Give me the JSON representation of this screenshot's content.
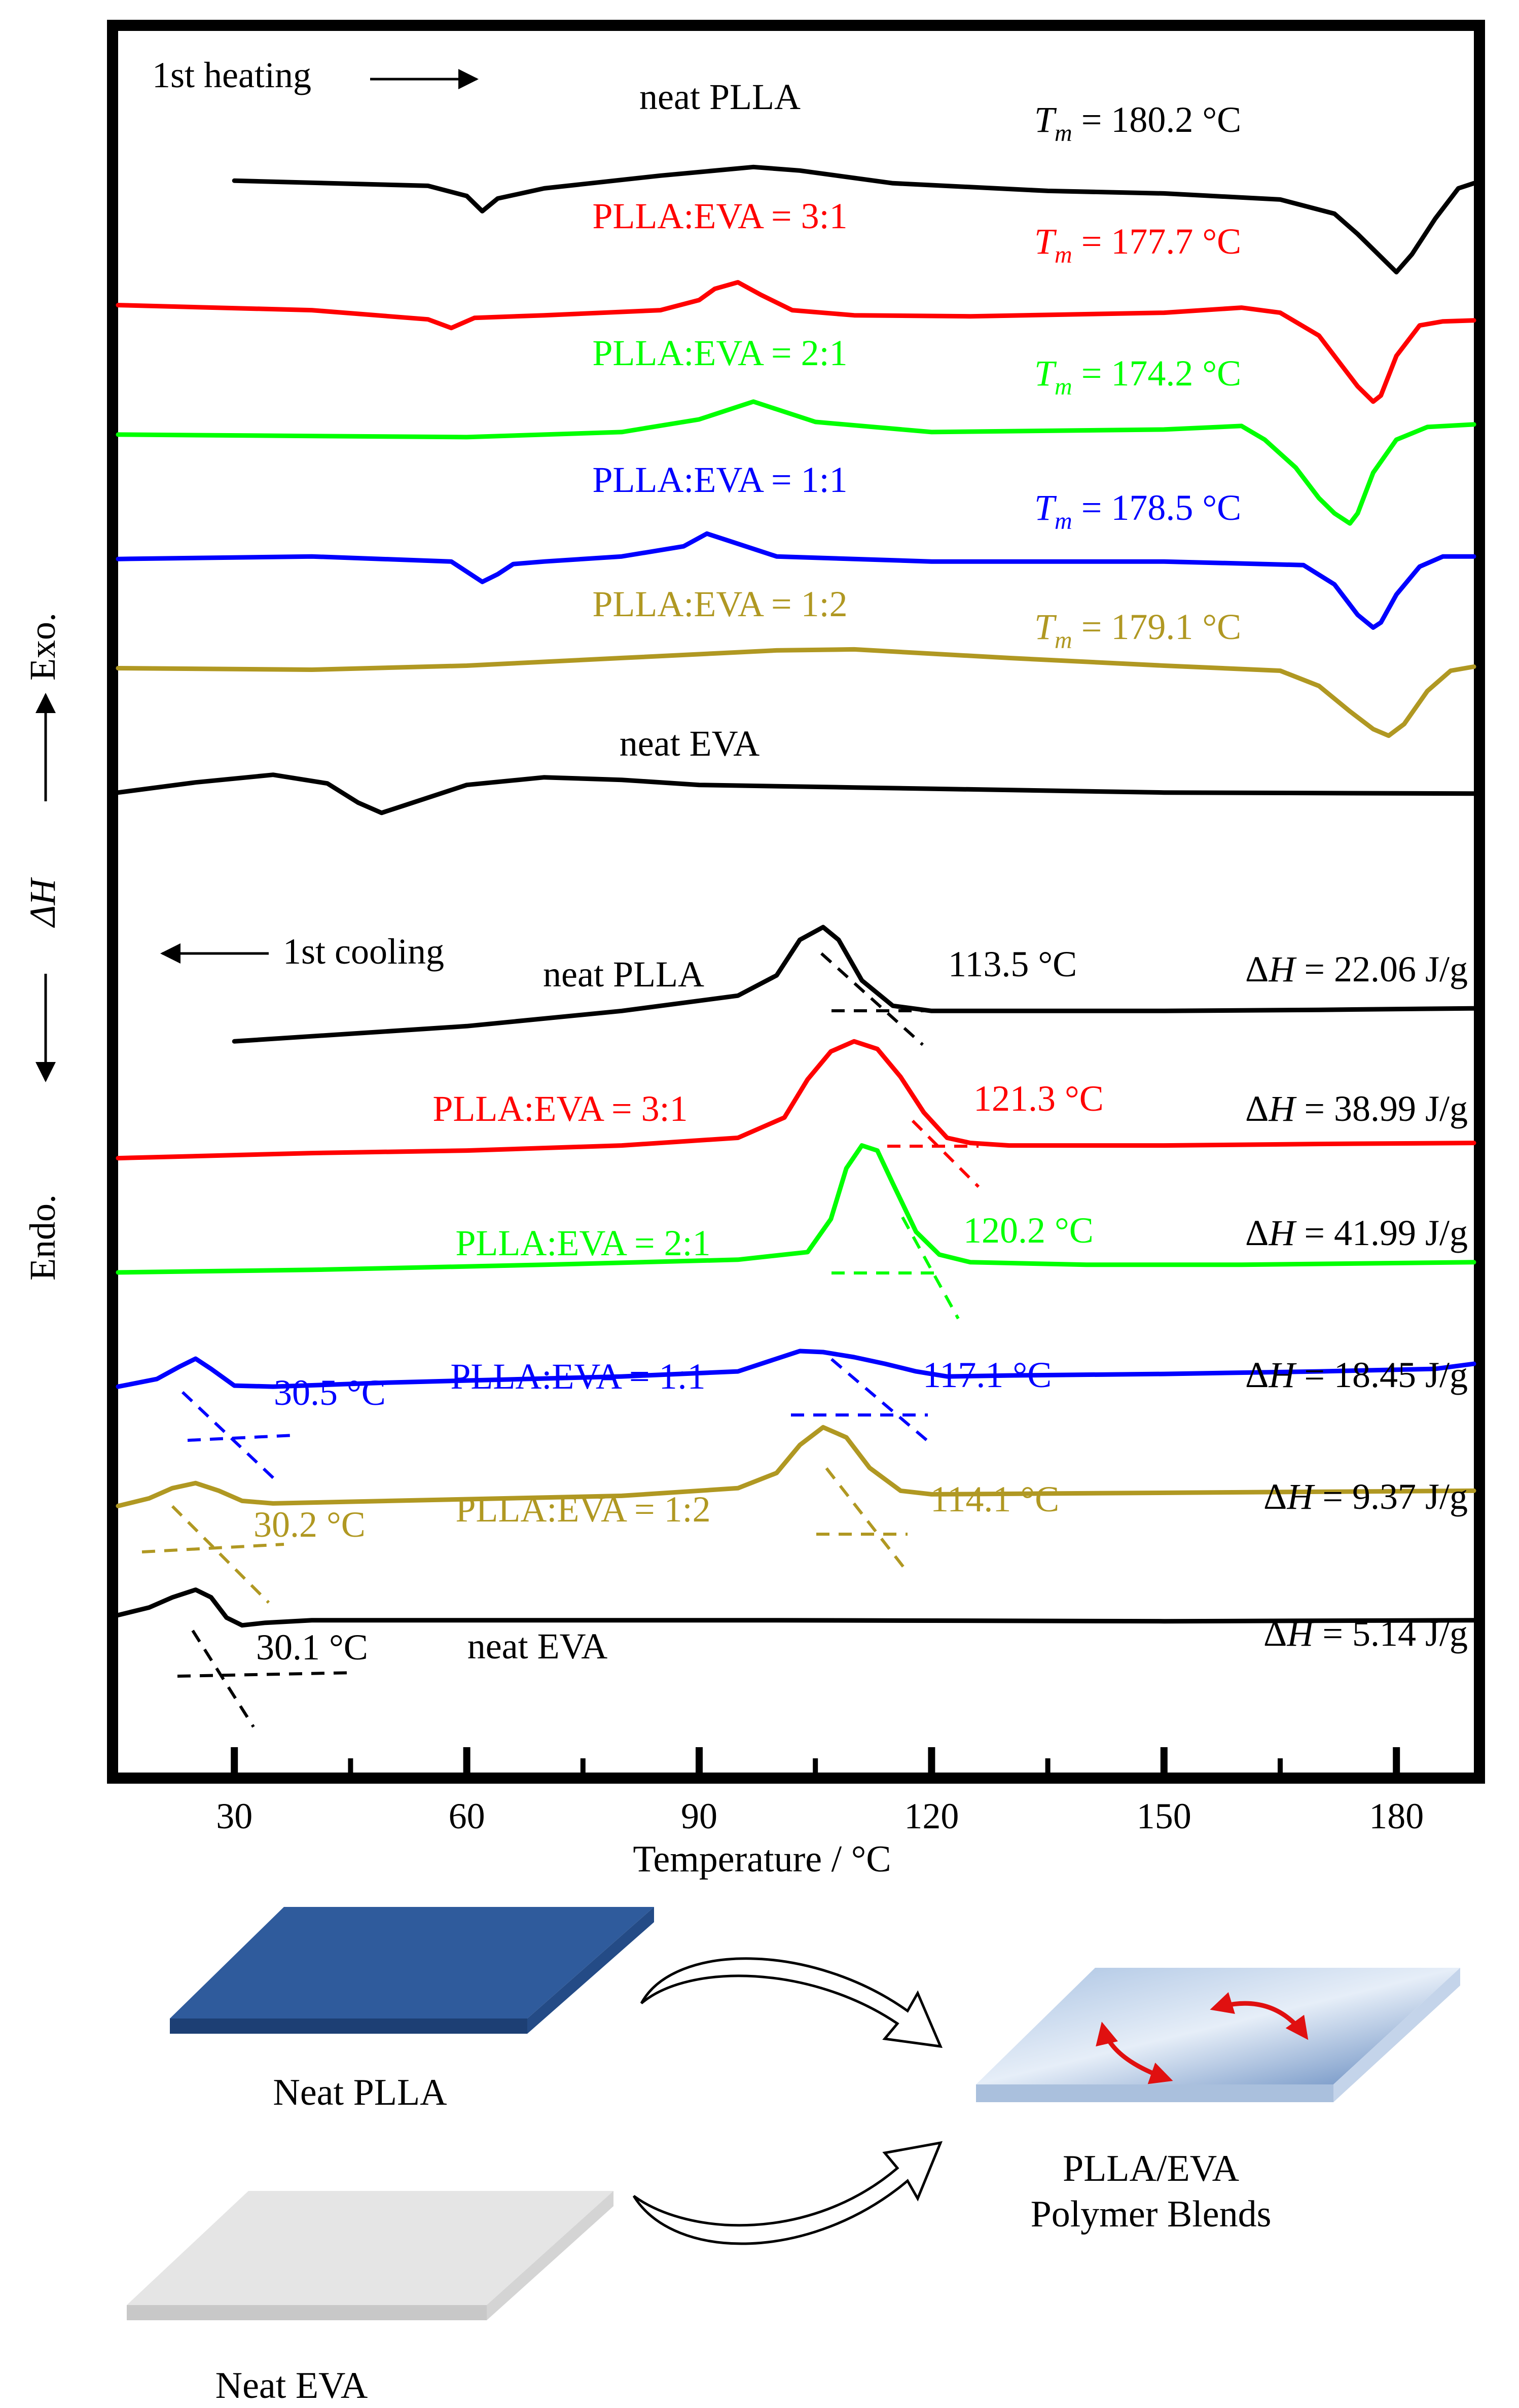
{
  "chart_data": {
    "type": "line",
    "title": "",
    "xlabel": "Temperature / °C",
    "ylabel": "Endo. ← ΔH → Exo.",
    "xlim": [
      15,
      190
    ],
    "ylim": [
      0,
      3430
    ],
    "grid": false,
    "x_ticks": [
      30,
      60,
      90,
      120,
      150,
      180
    ],
    "x_tick_labels": [
      "30",
      "60",
      "90",
      "120",
      "150",
      "180"
    ],
    "y_axis_labels": {
      "exo": "Exo.",
      "dh": "ΔH",
      "endo": "Endo."
    },
    "annotations": {
      "heating_label": "1st heating",
      "cooling_label": "1st cooling",
      "heating_arrow": "right",
      "cooling_arrow": "left",
      "y_arrow": "up-down"
    },
    "series": [
      {
        "name": "neat PLLA",
        "segment": "heating",
        "color": "#000000",
        "label": "neat PLLA",
        "tm_prefix": "T",
        "tm_sub": "m",
        "tm_text": "= 180.2 °C",
        "x": [
          30,
          55,
          60,
          62,
          64,
          70,
          85,
          97,
          103,
          115,
          135,
          150,
          165,
          172,
          175,
          178,
          180,
          182,
          185,
          188,
          190
        ],
        "y": [
          3135,
          3125,
          3105,
          3075,
          3100,
          3120,
          3145,
          3162,
          3155,
          3130,
          3115,
          3110,
          3098,
          3070,
          3030,
          2985,
          2955,
          2990,
          3060,
          3120,
          3130
        ]
      },
      {
        "name": "PLLA:EVA = 3:1",
        "segment": "heating",
        "color": "#ff0000",
        "label": "PLLA:EVA = 3:1",
        "tm_prefix": "T",
        "tm_sub": "m",
        "tm_text": "= 177.7 °C",
        "x": [
          15,
          40,
          55,
          58,
          61,
          70,
          85,
          90,
          92,
          95,
          98,
          102,
          110,
          125,
          150,
          160,
          165,
          170,
          173,
          175,
          177,
          178,
          180,
          183,
          186,
          190
        ],
        "y": [
          2890,
          2880,
          2862,
          2845,
          2865,
          2870,
          2880,
          2900,
          2922,
          2935,
          2910,
          2880,
          2870,
          2868,
          2875,
          2885,
          2875,
          2830,
          2770,
          2730,
          2700,
          2712,
          2790,
          2850,
          2858,
          2860
        ]
      },
      {
        "name": "PLLA:EVA = 2:1",
        "segment": "heating",
        "color": "#00ff00",
        "label": "PLLA:EVA = 2:1",
        "tm_prefix": "T",
        "tm_sub": "m",
        "tm_text": "= 174.2 °C",
        "x": [
          15,
          60,
          80,
          90,
          95,
          97,
          100,
          105,
          120,
          150,
          160,
          163,
          167,
          170,
          172,
          174,
          175,
          177,
          180,
          184,
          190
        ],
        "y": [
          2635,
          2630,
          2640,
          2665,
          2690,
          2700,
          2685,
          2660,
          2640,
          2645,
          2652,
          2625,
          2570,
          2510,
          2480,
          2460,
          2480,
          2560,
          2625,
          2650,
          2655
        ]
      },
      {
        "name": "PLLA:EVA = 1:1",
        "segment": "heating",
        "color": "#0000ff",
        "label": "PLLA:EVA = 1:1",
        "tm_prefix": "T",
        "tm_sub": "m",
        "tm_text": "= 178.5 °C",
        "x": [
          15,
          40,
          58,
          60,
          62,
          64,
          66,
          70,
          80,
          88,
          91,
          94,
          100,
          120,
          150,
          168,
          172,
          175,
          177,
          178,
          180,
          183,
          186,
          190
        ],
        "y": [
          2390,
          2395,
          2385,
          2365,
          2345,
          2360,
          2380,
          2385,
          2395,
          2415,
          2440,
          2425,
          2395,
          2385,
          2385,
          2378,
          2340,
          2280,
          2255,
          2265,
          2320,
          2375,
          2395,
          2395
        ]
      },
      {
        "name": "PLLA:EVA = 1:2",
        "segment": "heating",
        "color": "#b09822",
        "label": "PLLA:EVA = 1:2",
        "tm_prefix": "T",
        "tm_sub": "m",
        "tm_text": "= 179.1 °C",
        "x": [
          15,
          40,
          60,
          80,
          100,
          110,
          130,
          150,
          165,
          170,
          174,
          177,
          179,
          181,
          184,
          187,
          190
        ],
        "y": [
          2175,
          2172,
          2180,
          2195,
          2210,
          2212,
          2195,
          2180,
          2170,
          2140,
          2090,
          2055,
          2042,
          2065,
          2130,
          2170,
          2178
        ]
      },
      {
        "name": "neat EVA",
        "segment": "heating",
        "color": "#000000",
        "label": "neat EVA",
        "tm_text": "",
        "x": [
          15,
          25,
          35,
          42,
          46,
          49,
          52,
          60,
          70,
          80,
          90,
          110,
          150,
          190
        ],
        "y": [
          1930,
          1950,
          1965,
          1948,
          1910,
          1890,
          1905,
          1945,
          1960,
          1955,
          1945,
          1940,
          1930,
          1928
        ]
      },
      {
        "name": "neat PLLA",
        "segment": "cooling",
        "color": "#000000",
        "label": "neat PLLA",
        "onset_text": "113.5 °C",
        "dh_text": "= 22.06 J/g",
        "x": [
          30,
          60,
          80,
          95,
          100,
          103,
          106,
          108,
          111,
          115,
          120,
          130,
          150,
          170,
          190
        ],
        "y": [
          1440,
          1470,
          1500,
          1530,
          1570,
          1640,
          1665,
          1640,
          1560,
          1510,
          1500,
          1500,
          1500,
          1502,
          1505
        ]
      },
      {
        "name": "PLLA:EVA = 3:1",
        "segment": "cooling",
        "color": "#ff0000",
        "label": "PLLA:EVA = 3:1",
        "onset_text": "121.3 °C",
        "dh_text": "= 38.99 J/g",
        "x": [
          15,
          40,
          60,
          80,
          95,
          101,
          104,
          107,
          110,
          113,
          116,
          119,
          122,
          125,
          130,
          150,
          170,
          190
        ],
        "y": [
          1210,
          1220,
          1225,
          1235,
          1250,
          1290,
          1365,
          1420,
          1440,
          1425,
          1370,
          1300,
          1250,
          1240,
          1235,
          1235,
          1238,
          1240
        ]
      },
      {
        "name": "PLLA:EVA = 2:1",
        "segment": "cooling",
        "color": "#00ff00",
        "label": "PLLA:EVA = 2:1",
        "onset_text": "120.2 °C",
        "dh_text": "= 41.99 J/g",
        "x": [
          15,
          40,
          70,
          95,
          104,
          107,
          109,
          111,
          113,
          115,
          118,
          121,
          125,
          140,
          160,
          190
        ],
        "y": [
          985,
          990,
          1000,
          1010,
          1025,
          1090,
          1190,
          1235,
          1225,
          1160,
          1065,
          1020,
          1005,
          1000,
          1000,
          1005
        ]
      },
      {
        "name": "PLLA:EVA = 1:1",
        "segment": "cooling",
        "color": "#0000ff",
        "label": "PLLA:EVA = 1:1",
        "onset_text": "117.1 °C",
        "dh_text": "= 18.45 J/g",
        "low_text": "30.5 °C",
        "x": [
          15,
          20,
          23,
          25,
          27,
          30,
          35,
          50,
          80,
          95,
          100,
          103,
          106,
          110,
          114,
          118,
          122,
          130,
          150,
          170,
          185,
          190
        ],
        "y": [
          760,
          775,
          800,
          815,
          795,
          762,
          760,
          768,
          780,
          790,
          815,
          830,
          828,
          818,
          805,
          790,
          780,
          782,
          785,
          790,
          795,
          805
        ]
      },
      {
        "name": "PLLA:EVA = 1:2",
        "segment": "cooling",
        "color": "#b09822",
        "label": "PLLA:EVA = 1:2",
        "onset_text": "114.1 °C",
        "dh_text": "= 9.37 J/g",
        "low_text": "30.2 °C",
        "x": [
          15,
          19,
          22,
          25,
          28,
          31,
          35,
          50,
          80,
          95,
          100,
          103,
          106,
          109,
          112,
          116,
          120,
          140,
          160,
          190
        ],
        "y": [
          525,
          540,
          560,
          570,
          555,
          535,
          530,
          535,
          545,
          560,
          590,
          645,
          680,
          660,
          600,
          555,
          548,
          550,
          552,
          555
        ]
      },
      {
        "name": "neat EVA",
        "segment": "cooling",
        "color": "#000000",
        "label": "neat EVA",
        "dh_text": "= 5.14 J/g",
        "low_text": "30.1 °C",
        "x": [
          15,
          19,
          22,
          25,
          27,
          29,
          31,
          34,
          40,
          60,
          100,
          150,
          190
        ],
        "y": [
          310,
          325,
          345,
          360,
          345,
          305,
          290,
          295,
          300,
          300,
          300,
          298,
          300
        ]
      }
    ]
  },
  "schematic": {
    "label_pla": "Neat PLLA",
    "label_eva": "Neat EVA",
    "label_blend_1": "PLLA/EVA",
    "label_blend_2": "Polymer Blends",
    "colors": {
      "pla": "#2f5b9c",
      "eva": "#e3e3e3",
      "blend": "#7b9fcb",
      "arrow_red": "#e01010"
    }
  }
}
